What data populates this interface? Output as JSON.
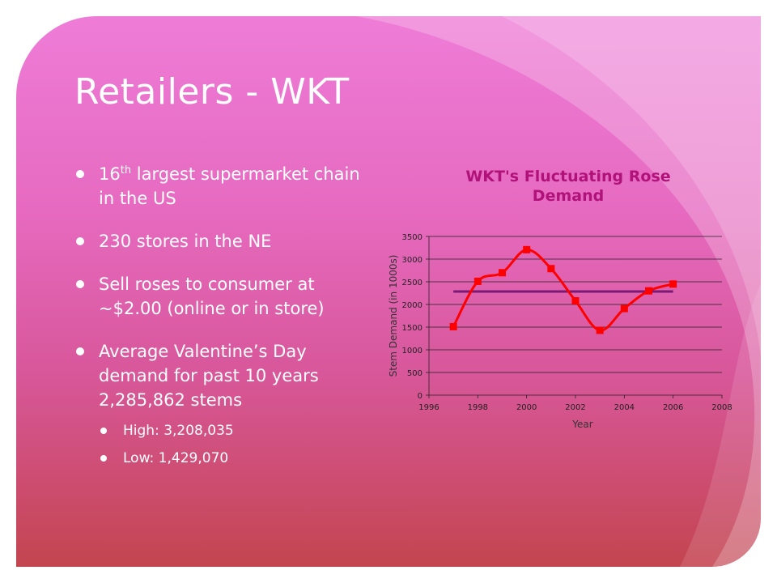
{
  "slide": {
    "title": "Retailers - WKT",
    "bullets": [
      {
        "prefix": "16",
        "sup": "th",
        "text": " largest supermarket chain in the US"
      },
      {
        "text": "230 stores in the NE"
      },
      {
        "text": "Sell roses to consumer at ~$2.00 (online or in store)"
      },
      {
        "text": "Average Valentine’s Day demand for past 10 years 2,285,862 stems"
      }
    ],
    "sub_bullets": [
      {
        "text": "High: 3,208,035"
      },
      {
        "text": "Low: 1,429,070"
      }
    ]
  },
  "colors": {
    "title_text": "#ffffff",
    "chart_title": "#b0127a",
    "series_line": "#ff0000",
    "average_line": "#7a1a72"
  },
  "chart_data": {
    "type": "line",
    "title": "WKT's Fluctuating Rose Demand",
    "xlabel": "Year",
    "ylabel": "Stem Demand (in 1000s)",
    "xlim": [
      1996,
      2008
    ],
    "ylim": [
      0,
      3500
    ],
    "x_ticks": [
      1996,
      1998,
      2000,
      2002,
      2004,
      2006,
      2008
    ],
    "y_ticks": [
      0,
      500,
      1000,
      1500,
      2000,
      2500,
      3000,
      3500
    ],
    "grid": true,
    "legend": "none",
    "series": [
      {
        "x": [
          1997,
          1998,
          1999,
          2000,
          2001,
          2002,
          2003,
          2004,
          2005,
          2006
        ],
        "values": [
          1510,
          2510,
          2700,
          3208,
          2790,
          2080,
          1429,
          1910,
          2300,
          2450
        ]
      },
      {
        "x": [
          1997,
          2006
        ],
        "values": [
          2286,
          2286
        ]
      }
    ]
  }
}
